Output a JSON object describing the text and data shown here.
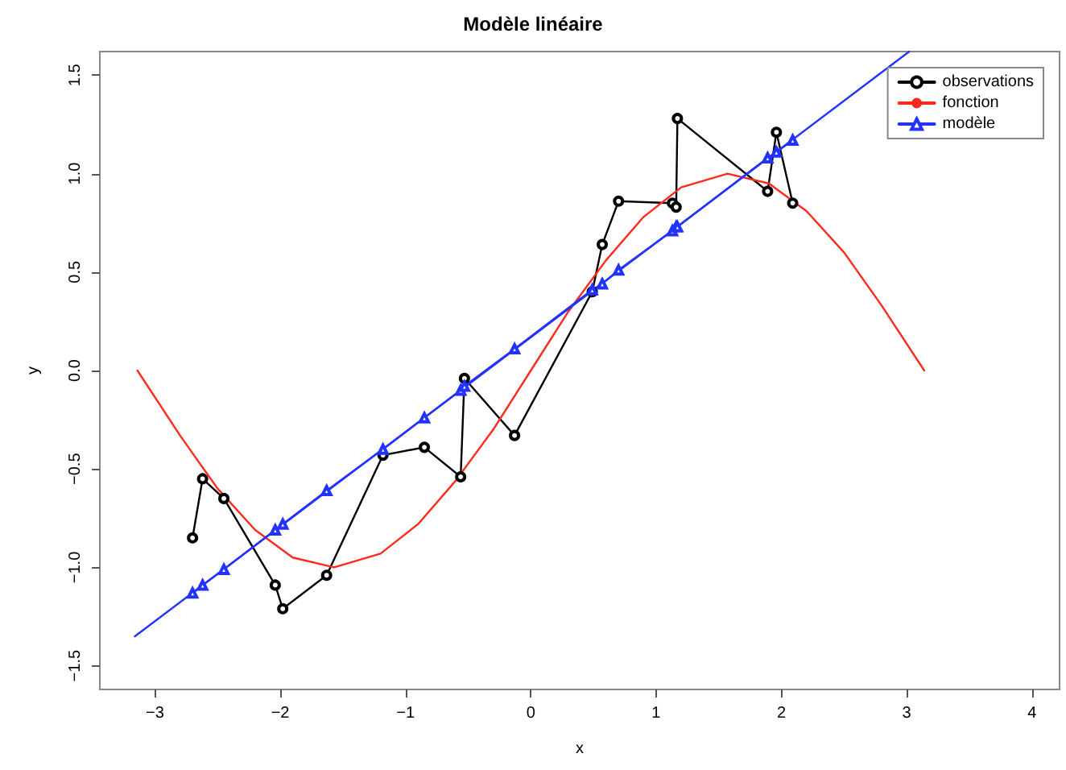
{
  "chart_data": {
    "type": "line",
    "title": "Modèle linéaire",
    "xlabel": "x",
    "ylabel": "y",
    "xlim": [
      -3.44,
      4.22
    ],
    "ylim": [
      -1.62,
      1.62
    ],
    "xticks": [
      {
        "value": -3,
        "label": "−3"
      },
      {
        "value": -2,
        "label": "−2"
      },
      {
        "value": -1,
        "label": "−1"
      },
      0,
      1,
      2,
      3,
      4
    ],
    "yticks": [
      {
        "value": -1.5,
        "label": "−1.5"
      },
      {
        "value": -1,
        "label": "−1.0"
      },
      {
        "value": -0.5,
        "label": "−0.5"
      },
      {
        "value": 0,
        "label": "0.0"
      },
      0.5,
      {
        "value": 1,
        "label": "1.0"
      },
      1.5
    ],
    "grid": false,
    "legend": "top right",
    "series": [
      {
        "name": "observations",
        "color": "#000000",
        "marker": "circle",
        "x": [
          -2.7,
          -2.62,
          -2.45,
          -2.04,
          -1.98,
          -1.63,
          -1.18,
          -0.85,
          -0.56,
          -0.53,
          -0.13,
          0.49,
          0.57,
          0.7,
          1.13,
          1.16,
          1.17,
          1.89,
          1.96,
          2.09
        ],
        "values": [
          -0.85,
          -0.55,
          -0.65,
          -1.09,
          -1.21,
          -1.04,
          -0.43,
          -0.39,
          -0.54,
          -0.04,
          -0.33,
          0.4,
          0.64,
          0.86,
          0.85,
          0.83,
          1.28,
          0.91,
          1.21,
          0.85
        ]
      },
      {
        "name": "fonction",
        "color": "#ff2a1a",
        "marker": "none",
        "x": [
          -3.14,
          -2.8,
          -2.5,
          -2.2,
          -1.9,
          -1.57,
          -1.2,
          -0.9,
          -0.6,
          -0.3,
          0,
          0.3,
          0.6,
          0.9,
          1.2,
          1.57,
          1.9,
          2.2,
          2.5,
          2.8,
          3.14
        ],
        "values": [
          0,
          -0.33,
          -0.6,
          -0.81,
          -0.95,
          -1,
          -0.93,
          -0.78,
          -0.56,
          -0.3,
          0,
          0.3,
          0.56,
          0.78,
          0.93,
          1,
          0.95,
          0.81,
          0.6,
          0.33,
          0
        ]
      },
      {
        "name": "modèle",
        "color": "#2233ff",
        "marker": "triangle",
        "x": [
          -2.7,
          -2.62,
          -2.45,
          -2.04,
          -1.98,
          -1.63,
          -1.18,
          -0.85,
          -0.56,
          -0.53,
          -0.13,
          0.49,
          0.57,
          0.7,
          1.13,
          1.16,
          1.17,
          1.89,
          1.96,
          2.09
        ],
        "values": [
          -1.13,
          -1.09,
          -1.01,
          -0.81,
          -0.78,
          -0.61,
          -0.4,
          -0.24,
          -0.1,
          -0.08,
          0.11,
          0.41,
          0.44,
          0.51,
          0.71,
          0.73,
          0.73,
          1.08,
          1.11,
          1.17
        ]
      },
      {
        "color": "#2233ff",
        "marker": "none",
        "x": [
          -3.16,
          3.02
        ],
        "values": [
          -1.35,
          1.62
        ]
      }
    ]
  }
}
